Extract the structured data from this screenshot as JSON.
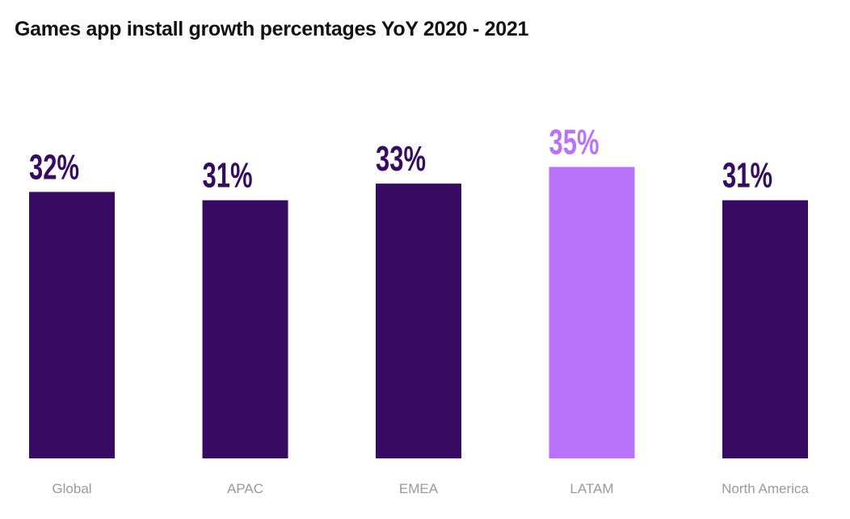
{
  "chart_data": {
    "type": "bar",
    "title": "Games app install growth percentages YoY 2020 - 2021",
    "categories": [
      "Global",
      "APAC",
      "EMEA",
      "LATAM",
      "North America"
    ],
    "values": [
      32,
      31,
      33,
      35,
      31
    ],
    "value_labels": [
      "32%",
      "31%",
      "33%",
      "35%",
      "31%"
    ],
    "unit": "%",
    "highlight": "LATAM",
    "colors": {
      "default": "#380b62",
      "highlight": "#b973fa",
      "category_label": "#9a9a9a",
      "title": "#111111"
    },
    "xlabel": "",
    "ylabel": "",
    "ylim": [
      0,
      35
    ],
    "grid": false,
    "legend": "none"
  }
}
